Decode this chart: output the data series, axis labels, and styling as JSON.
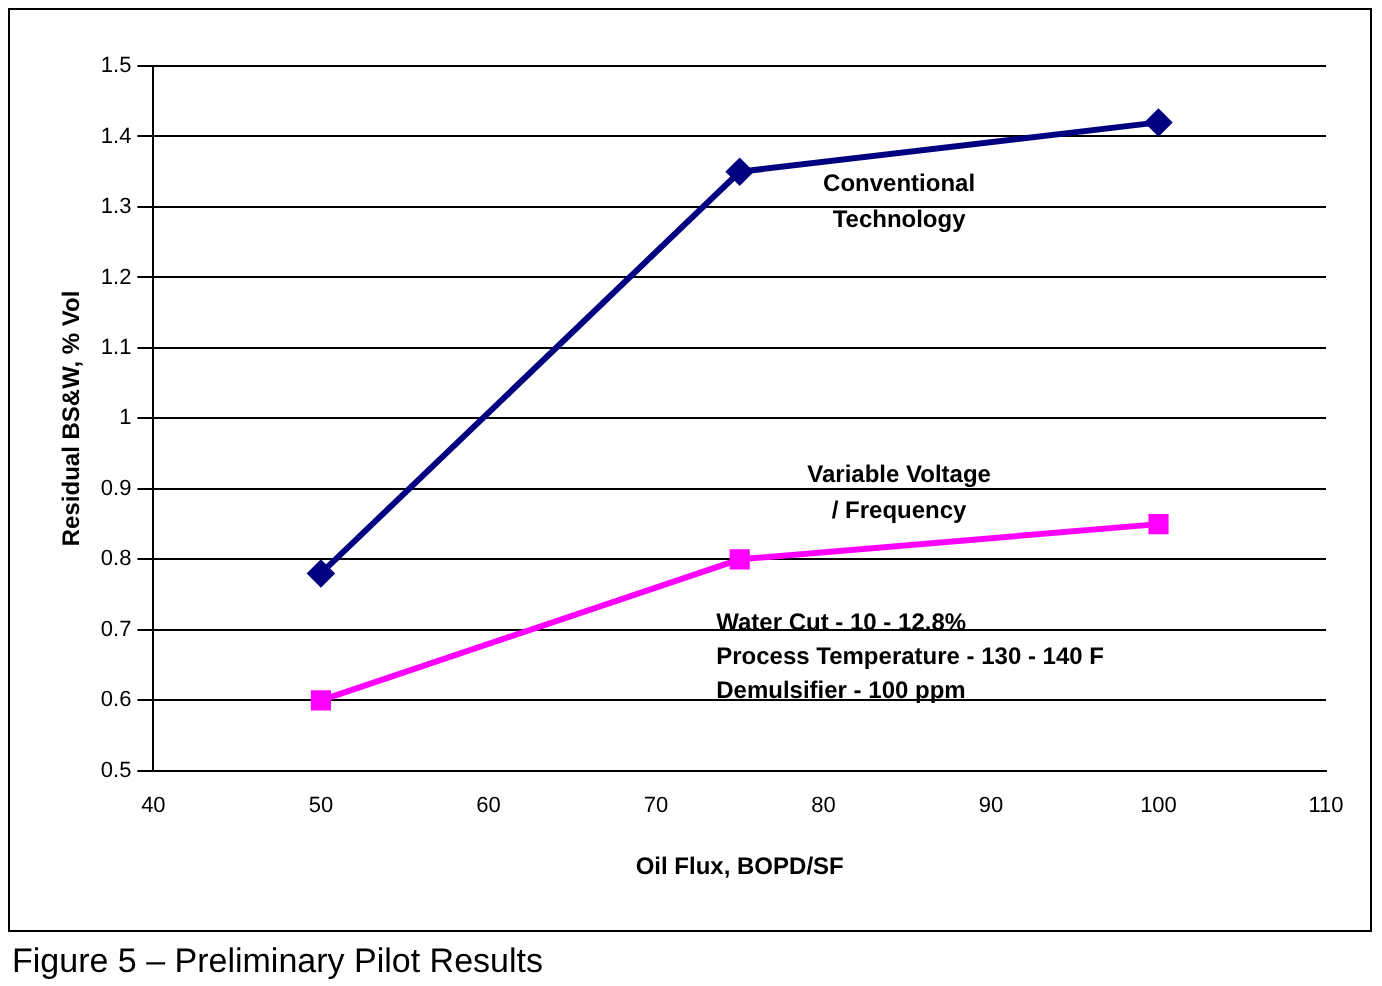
{
  "chart_data": {
    "type": "line",
    "xlabel": "Oil Flux, BOPD/SF",
    "ylabel": "Residual BS&W, % Vol",
    "series": [
      {
        "name": "Conventional Technology",
        "color": "#000080",
        "marker": "diamond",
        "x": [
          50,
          75,
          100
        ],
        "values": [
          0.78,
          1.35,
          1.42
        ]
      },
      {
        "name": "Variable Voltage / Frequency",
        "color": "#ff00ff",
        "marker": "square",
        "x": [
          50,
          75,
          100
        ],
        "values": [
          0.6,
          0.8,
          0.85
        ]
      }
    ],
    "xlim": [
      40,
      110
    ],
    "xticks": [
      40,
      50,
      60,
      70,
      80,
      90,
      100,
      110
    ],
    "ylim": [
      0.5,
      1.5
    ],
    "yticks": [
      0.5,
      0.6,
      0.7,
      0.8,
      0.9,
      1,
      1.1,
      1.2,
      1.3,
      1.4,
      1.5
    ],
    "grid": "y",
    "legend": false,
    "annotations": [
      "Water Cut - 10 - 12.8%",
      "Process Temperature - 130 - 140 F",
      "Demulsifier - 100 ppm",
      "Figure 5 – Preliminary Pilot Results"
    ]
  }
}
